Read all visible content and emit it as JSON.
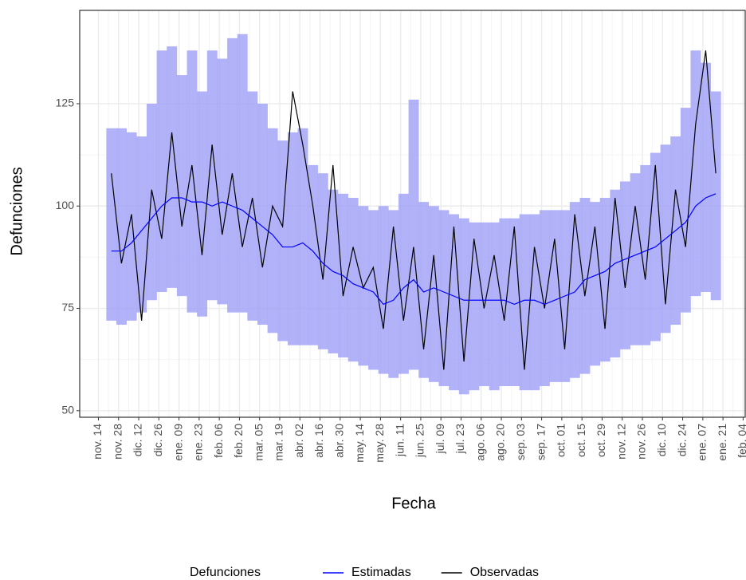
{
  "chart_data": {
    "type": "line",
    "x_label": "Fecha",
    "y_label": "Defunciones",
    "legend_title": "Defunciones",
    "legend_position": "bottom",
    "grid": true,
    "x": [
      9,
      16,
      23,
      30,
      37,
      44,
      51,
      58,
      65,
      72,
      79,
      86,
      93,
      100,
      107,
      114,
      121,
      128,
      135,
      142,
      149,
      156,
      163,
      170,
      177,
      184,
      191,
      198,
      205,
      212,
      219,
      226,
      233,
      240,
      247,
      254,
      261,
      268,
      275,
      282,
      289,
      296,
      303,
      310,
      317,
      324,
      331,
      338,
      345,
      352,
      359,
      366,
      373,
      380,
      387,
      394,
      401,
      408,
      415,
      422,
      429
    ],
    "band": {
      "color": "#9f9ff7",
      "upper": [
        119,
        119,
        118,
        117,
        125,
        138,
        139,
        132,
        138,
        128,
        138,
        136,
        141,
        142,
        128,
        125,
        119,
        116,
        118,
        119,
        110,
        108,
        104,
        103,
        102,
        100,
        99,
        100,
        99,
        103,
        126,
        101,
        100,
        99,
        98,
        97,
        96,
        96,
        96,
        97,
        97,
        98,
        98,
        99,
        99,
        99,
        101,
        102,
        101,
        102,
        104,
        106,
        108,
        110,
        113,
        115,
        117,
        124,
        138,
        135,
        128
      ],
      "lower": [
        72,
        71,
        72,
        74,
        77,
        79,
        80,
        78,
        74,
        73,
        77,
        76,
        74,
        74,
        72,
        71,
        69,
        67,
        66,
        66,
        66,
        65,
        64,
        63,
        62,
        61,
        60,
        59,
        58,
        59,
        60,
        58,
        57,
        56,
        55,
        54,
        55,
        56,
        55,
        56,
        56,
        55,
        55,
        56,
        57,
        57,
        58,
        59,
        61,
        62,
        63,
        65,
        66,
        66,
        67,
        69,
        71,
        74,
        78,
        79,
        77
      ]
    },
    "series": [
      {
        "name": "Estimadas",
        "color": "#0000ff",
        "values": [
          89,
          89,
          91,
          94,
          97,
          100,
          102,
          102,
          101,
          101,
          100,
          101,
          100,
          99,
          97,
          95,
          93,
          90,
          90,
          91,
          89,
          86,
          84,
          83,
          81,
          80,
          79,
          76,
          77,
          80,
          82,
          79,
          80,
          79,
          78,
          77,
          77,
          77,
          77,
          77,
          76,
          77,
          77,
          76,
          77,
          78,
          79,
          82,
          83,
          84,
          86,
          87,
          88,
          89,
          90,
          92,
          94,
          96,
          100,
          102,
          103
        ]
      },
      {
        "name": "Observadas",
        "color": "#000000",
        "values": [
          108,
          86,
          98,
          72,
          104,
          92,
          118,
          95,
          110,
          88,
          115,
          93,
          108,
          90,
          102,
          85,
          100,
          95,
          128,
          115,
          100,
          82,
          110,
          78,
          90,
          80,
          85,
          70,
          95,
          72,
          90,
          65,
          88,
          60,
          95,
          62,
          92,
          75,
          88,
          72,
          95,
          60,
          90,
          75,
          92,
          65,
          98,
          78,
          95,
          70,
          102,
          80,
          100,
          82,
          110,
          76,
          104,
          90,
          120,
          138,
          108
        ]
      }
    ],
    "xlim": [
      -13,
      450
    ],
    "xticks": [
      {
        "value": 0,
        "label": "nov. 14"
      },
      {
        "value": 14,
        "label": "nov. 28"
      },
      {
        "value": 28,
        "label": "dic. 12"
      },
      {
        "value": 42,
        "label": "dic. 26"
      },
      {
        "value": 56,
        "label": "ene. 09"
      },
      {
        "value": 70,
        "label": "ene. 23"
      },
      {
        "value": 84,
        "label": "feb. 06"
      },
      {
        "value": 98,
        "label": "feb. 20"
      },
      {
        "value": 112,
        "label": "mar. 05"
      },
      {
        "value": 126,
        "label": "mar. 19"
      },
      {
        "value": 140,
        "label": "abr. 02"
      },
      {
        "value": 154,
        "label": "abr. 16"
      },
      {
        "value": 168,
        "label": "abr. 30"
      },
      {
        "value": 182,
        "label": "may. 14"
      },
      {
        "value": 196,
        "label": "may. 28"
      },
      {
        "value": 210,
        "label": "jun. 11"
      },
      {
        "value": 224,
        "label": "jun. 25"
      },
      {
        "value": 238,
        "label": "jul. 09"
      },
      {
        "value": 252,
        "label": "jul. 23"
      },
      {
        "value": 266,
        "label": "ago. 06"
      },
      {
        "value": 280,
        "label": "ago. 20"
      },
      {
        "value": 294,
        "label": "sep. 03"
      },
      {
        "value": 308,
        "label": "sep. 17"
      },
      {
        "value": 322,
        "label": "oct. 01"
      },
      {
        "value": 336,
        "label": "oct. 15"
      },
      {
        "value": 350,
        "label": "oct. 29"
      },
      {
        "value": 364,
        "label": "nov. 12"
      },
      {
        "value": 378,
        "label": "nov. 26"
      },
      {
        "value": 392,
        "label": "dic. 10"
      },
      {
        "value": 406,
        "label": "dic. 24"
      },
      {
        "value": 420,
        "label": "ene. 07"
      },
      {
        "value": 434,
        "label": "ene. 21"
      },
      {
        "value": 448,
        "label": "feb. 04"
      }
    ],
    "ylim": [
      48.4,
      147.8
    ],
    "yticks": [
      50,
      75,
      100,
      125
    ]
  }
}
